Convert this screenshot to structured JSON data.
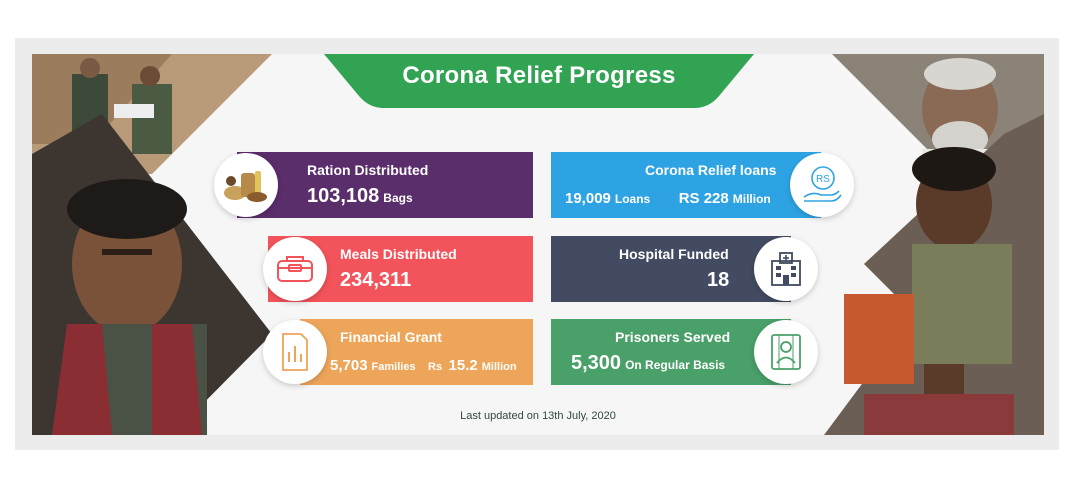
{
  "title": "Corona Relief Progress",
  "colors": {
    "header_green": "#31a353",
    "ration": "#5a2d6b",
    "loans": "#2ea3e3",
    "meals": "#f3535a",
    "hospital": "#424b61",
    "grant": "#eda55a",
    "prisoners": "#49a068"
  },
  "cards": {
    "ration": {
      "label": "Ration Distributed",
      "value": "103,108",
      "unit": "Bags",
      "icon": "grocery-icon"
    },
    "loans": {
      "label": "Corona Relief loans",
      "value1": "19,009",
      "unit1": "Loans",
      "value2": "RS 228",
      "unit2": "Million",
      "icon": "rupee-hand-icon",
      "icon_text": "RS"
    },
    "meals": {
      "label": "Meals Distributed",
      "value": "234,311",
      "icon": "lunchbox-icon"
    },
    "hospital": {
      "label": "Hospital Funded",
      "value": "18",
      "icon": "hospital-icon"
    },
    "grant": {
      "label": "Financial Grant",
      "value1": "5,703",
      "unit1": "Families",
      "prefix2": "Rs",
      "value2": "15.2",
      "unit2": "Million",
      "icon": "grant-document-icon"
    },
    "prisoners": {
      "label": "Prisoners Served",
      "value": "5,300",
      "unit": "On Regular Basis",
      "icon": "prisoner-icon"
    }
  },
  "footer": "Last updated on 13th July, 2020"
}
